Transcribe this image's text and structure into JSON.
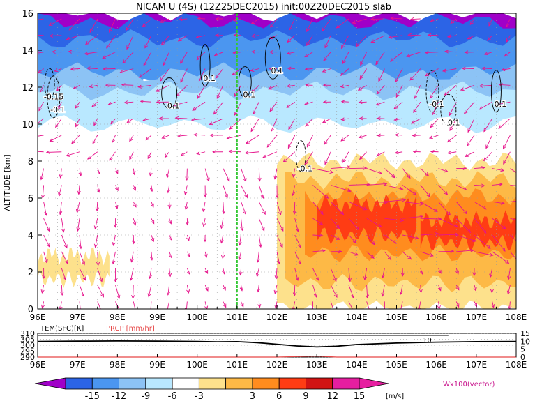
{
  "title": "NICAM U (4S) (12Z25DEC2015) init:00Z20DEC2015 slab",
  "colors": {
    "levels": [
      "#a000c8",
      "#2c64e6",
      "#4b96f0",
      "#8cc3f5",
      "#b9e8ff",
      "#ffffff",
      "#fde18c",
      "#fdb946",
      "#ff8c1e",
      "#ff3c14",
      "#d21414",
      "#e61ea0"
    ],
    "vector": "#e6148c",
    "marker_line": "#32c832",
    "precip": "#e64646"
  },
  "chart_data": [
    {
      "type": "heatmap",
      "name": "main-section",
      "xlabel": "",
      "ylabel": "ALTITUDE [km]",
      "xlim": [
        96,
        108
      ],
      "ylim": [
        0,
        16
      ],
      "x_ticks": [
        "96E",
        "97E",
        "98E",
        "99E",
        "100E",
        "101E",
        "102E",
        "103E",
        "104E",
        "105E",
        "106E",
        "107E",
        "108E"
      ],
      "y_ticks": [
        "0",
        "2",
        "4",
        "6",
        "8",
        "10",
        "12",
        "14",
        "16"
      ],
      "marker_longitude": 101,
      "layers": [
        {
          "level": -15,
          "ybot": 14.3,
          "ytop": 16,
          "xmin": 96.0,
          "xmax": 108
        },
        {
          "level": -12,
          "ybot": 13.0,
          "ytop": 15.6,
          "xmin": 96.0,
          "xmax": 108
        },
        {
          "level": -9,
          "ybot": 12.0,
          "ytop": 14.6,
          "xmin": 96.0,
          "xmax": 108
        },
        {
          "level": -6,
          "ybot": 11.2,
          "ytop": 12.8,
          "xmin": 96.0,
          "xmax": 108
        },
        {
          "level": -3,
          "ybot": 10.0,
          "ytop": 11.8,
          "xmin": 96.0,
          "xmax": 108
        },
        {
          "level": 3,
          "ybot": 1.6,
          "ytop": 2.9,
          "xmin": 96.0,
          "xmax": 97.8
        },
        {
          "level": 3,
          "ybot": 0.0,
          "ytop": 8.0,
          "xmin": 102.0,
          "xmax": 108
        },
        {
          "level": 6,
          "ybot": 1.4,
          "ytop": 7.0,
          "xmin": 102.2,
          "xmax": 108
        },
        {
          "level": 9,
          "ybot": 3.0,
          "ytop": 6.1,
          "xmin": 102.7,
          "xmax": 108
        },
        {
          "level": 12,
          "ybot": 4.0,
          "ytop": 5.7,
          "xmin": 103.0,
          "xmax": 105.5
        },
        {
          "level": 12,
          "ybot": 3.6,
          "ytop": 4.8,
          "xmin": 105.6,
          "xmax": 108
        }
      ],
      "contours": [
        {
          "label": "-0.15",
          "x": 96.3,
          "y": 11.5
        },
        {
          "label": "-0.1",
          "x": 96.4,
          "y": 10.8
        },
        {
          "label": "0.1",
          "x": 99.3,
          "y": 11.0
        },
        {
          "label": "0.1",
          "x": 100.2,
          "y": 12.5
        },
        {
          "label": "0.1",
          "x": 101.2,
          "y": 11.6
        },
        {
          "label": "0.1",
          "x": 101.9,
          "y": 12.9
        },
        {
          "label": "-0.1",
          "x": 102.6,
          "y": 7.6
        },
        {
          "label": "-0.1",
          "x": 105.9,
          "y": 11.1
        },
        {
          "label": "-0.1",
          "x": 106.3,
          "y": 10.1
        },
        {
          "label": "0.1",
          "x": 107.5,
          "y": 11.1
        }
      ]
    },
    {
      "type": "line",
      "name": "surface-panel",
      "xlabel": "",
      "ylabel": "TEM(SFC)[K]",
      "y2label": "PRCP [mm/hr]",
      "xlim": [
        96,
        108
      ],
      "ylim": [
        290,
        310
      ],
      "y_ticks": [
        "290",
        "295",
        "300",
        "305",
        "310"
      ],
      "y2_ticks": [
        "0",
        "5",
        "10",
        "15"
      ],
      "x_ticks": [
        "96E",
        "97E",
        "98E",
        "99E",
        "100E",
        "101E",
        "102E",
        "103E",
        "104E",
        "105E",
        "106E",
        "107E",
        "108E"
      ],
      "series": [
        {
          "x": [
            96,
            97,
            98,
            99,
            100,
            100.5,
            101,
            101.5,
            102,
            102.5,
            103,
            103.5,
            104,
            105,
            106,
            107,
            108
          ],
          "values": [
            303.2,
            303.4,
            303.6,
            303.5,
            303.2,
            302.9,
            303.0,
            302.2,
            300.8,
            299.4,
            298.6,
            299.2,
            300.6,
            301.8,
            302.6,
            303.0,
            303.1
          ]
        }
      ],
      "precip_values": [
        0,
        0,
        0,
        0,
        0,
        0,
        0,
        0,
        0,
        0.3,
        0.6,
        0,
        0,
        0,
        0,
        0,
        0
      ],
      "annotation": "10"
    },
    {
      "type": "colorbar",
      "name": "u-colorbar",
      "ticks": [
        "-15",
        "-12",
        "-9",
        "-6",
        "-3",
        "3",
        "6",
        "9",
        "12",
        "15"
      ],
      "unit": "[m/s]",
      "vector_label": "Wx100(vector)"
    }
  ]
}
